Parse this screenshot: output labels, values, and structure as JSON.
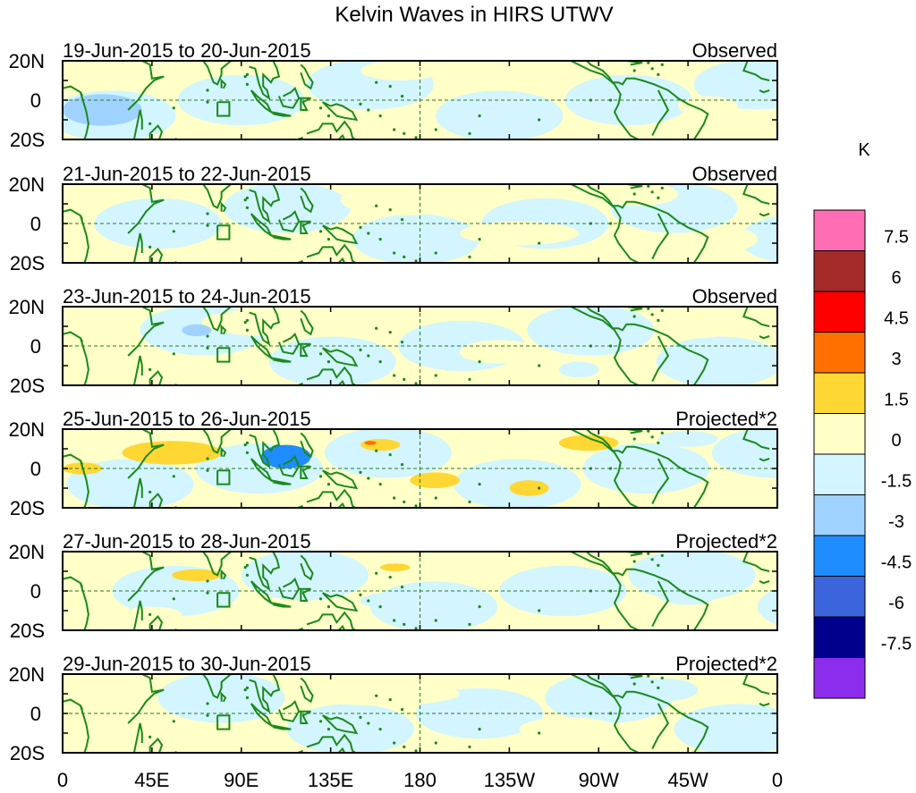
{
  "title": "Kelvin Waves in HIRS UTWV",
  "lat_labels": [
    "20N",
    "0",
    "20S"
  ],
  "lon_labels": [
    "0",
    "45E",
    "90E",
    "135E",
    "180",
    "135W",
    "90W",
    "45W",
    "0"
  ],
  "panels": [
    {
      "date_range": "19-Jun-2015 to 20-Jun-2015",
      "kind": "Observed"
    },
    {
      "date_range": "21-Jun-2015 to 22-Jun-2015",
      "kind": "Observed"
    },
    {
      "date_range": "23-Jun-2015 to 24-Jun-2015",
      "kind": "Observed"
    },
    {
      "date_range": "25-Jun-2015 to 26-Jun-2015",
      "kind": "Projected*2"
    },
    {
      "date_range": "27-Jun-2015 to 28-Jun-2015",
      "kind": "Projected*2"
    },
    {
      "date_range": "29-Jun-2015 to 30-Jun-2015",
      "kind": "Projected*2"
    }
  ],
  "colorbar": {
    "unit": "K",
    "labels": [
      "7.5",
      "6",
      "4.5",
      "3",
      "1.5",
      "0",
      "-1.5",
      "-3",
      "-4.5",
      "-6",
      "-7.5"
    ],
    "colors": [
      "#ff6eb4",
      "#a52a2a",
      "#ff0000",
      "#ff7000",
      "#ffd734",
      "#ffffc8",
      "#d2f5ff",
      "#a0d2ff",
      "#1e8cff",
      "#3c64dc",
      "#00008c",
      "#8c2ded"
    ]
  },
  "colors": {
    "land_outline": "#1a8a1a",
    "neutral_positive": "#ffffc8",
    "neutral_negative": "#d2f5ff"
  }
}
